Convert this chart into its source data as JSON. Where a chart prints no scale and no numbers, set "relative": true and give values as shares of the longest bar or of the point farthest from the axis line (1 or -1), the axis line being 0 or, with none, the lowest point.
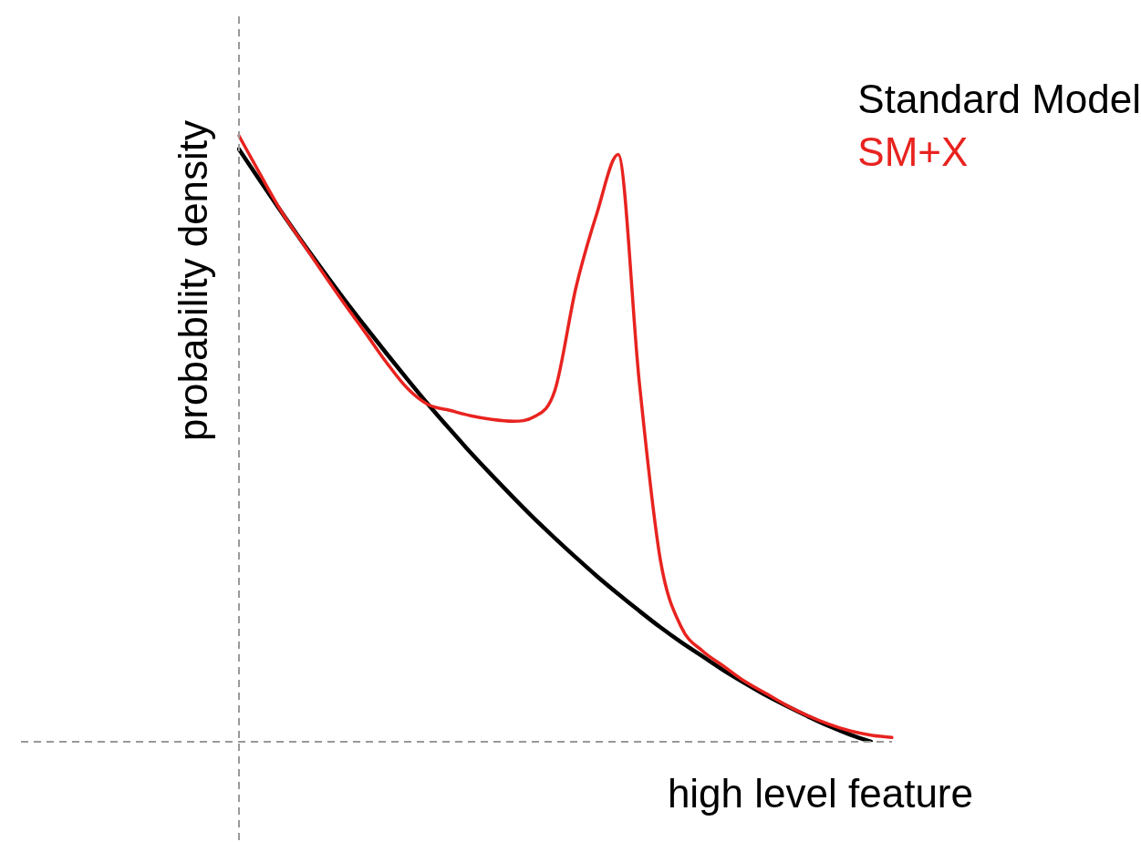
{
  "chart_data": {
    "type": "line",
    "relative": true,
    "xlabel": "high level feature",
    "ylabel": "probability density",
    "categories": [
      null,
      null,
      null,
      null,
      null,
      null,
      null,
      null,
      null,
      null,
      null,
      null,
      null,
      null,
      null,
      null,
      null,
      null,
      null,
      null,
      null,
      null,
      null,
      null,
      null,
      null,
      null,
      null,
      null,
      null,
      null,
      null
    ],
    "series": [
      {
        "name": "Standard Model",
        "color": "#000000",
        "values": [
          0.978,
          0.926,
          0.875,
          0.825,
          0.777,
          0.73,
          0.685,
          0.641,
          0.598,
          0.556,
          0.516,
          0.477,
          0.44,
          0.404,
          0.369,
          0.336,
          0.304,
          0.273,
          0.244,
          0.216,
          0.189,
          0.164,
          0.141,
          0.118,
          0.097,
          0.077,
          0.059,
          0.042,
          0.026,
          0.012,
          0.0,
          null
        ]
      },
      {
        "name": "SM+X",
        "color": "#e8231f",
        "values": [
          1.0,
          0.937,
          0.876,
          0.824,
          0.773,
          0.723,
          0.675,
          0.626,
          0.583,
          0.556,
          0.547,
          0.538,
          0.532,
          0.529,
          0.536,
          0.58,
          0.75,
          0.873,
          0.969,
          0.595,
          0.301,
          0.189,
          0.15,
          0.125,
          0.1,
          0.08,
          0.06,
          0.043,
          0.029,
          0.018,
          0.011,
          0.007
        ]
      }
    ],
    "legend": "top right",
    "grid": false,
    "marker": "none",
    "line_style": "solid"
  }
}
